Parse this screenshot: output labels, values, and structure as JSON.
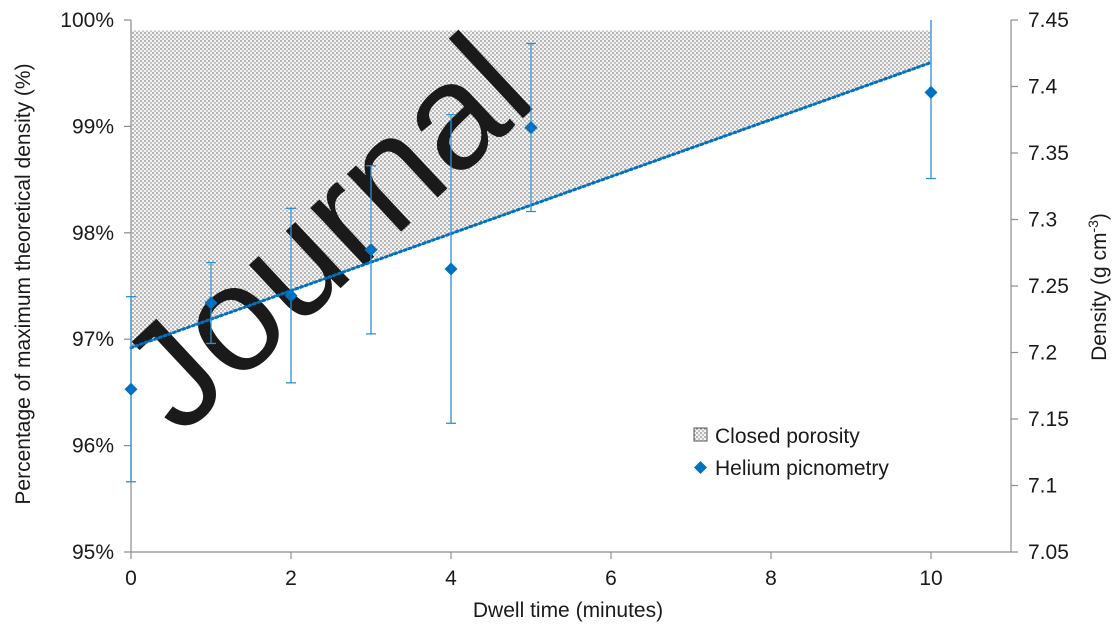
{
  "chart_data": {
    "type": "scatter",
    "x_axis": {
      "label": "Dwell time (minutes)",
      "range": [
        0,
        11
      ],
      "ticks": [
        0,
        2,
        4,
        6,
        8,
        10
      ],
      "tick_labels": [
        "0",
        "2",
        "4",
        "6",
        "8",
        "10"
      ]
    },
    "y_axis_left": {
      "label": "Percentage of maximum theoretical density (%)",
      "range": [
        95,
        100
      ],
      "ticks": [
        95,
        96,
        97,
        98,
        99,
        100
      ],
      "tick_labels": [
        "95%",
        "96%",
        "97%",
        "98%",
        "99%",
        "100%"
      ]
    },
    "y_axis_right": {
      "label_main": "Density (g cm",
      "label_sup": "-3",
      "label_end": ")",
      "range": [
        7.05,
        7.45
      ],
      "ticks": [
        7.05,
        7.1,
        7.15,
        7.2,
        7.25,
        7.3,
        7.35,
        7.4,
        7.45
      ],
      "tick_labels": [
        "7.05",
        "7.1",
        "7.15",
        "7.2",
        "7.25",
        "7.3",
        "7.35",
        "7.4",
        "7.45"
      ]
    },
    "series": [
      {
        "name": "Helium picnometry",
        "color": "#0070c0",
        "marker": "diamond",
        "points": [
          {
            "x": 0,
            "y": 96.53,
            "err": 0.87
          },
          {
            "x": 1,
            "y": 97.34,
            "err": 0.38
          },
          {
            "x": 2,
            "y": 97.41,
            "err": 0.82
          },
          {
            "x": 3,
            "y": 97.84,
            "err": 0.79
          },
          {
            "x": 4,
            "y": 97.66,
            "err": 1.45
          },
          {
            "x": 5,
            "y": 98.99,
            "err": 0.79
          },
          {
            "x": 10,
            "y": 99.32,
            "err": 0.81
          }
        ]
      },
      {
        "name": "Closed porosity",
        "type": "area",
        "fill": "dotted-gray",
        "x_range": [
          0,
          10
        ],
        "upper": 99.9
      }
    ],
    "trendline": {
      "type": "linear",
      "color": "#0070c0",
      "style": "dotted",
      "points": [
        [
          0,
          96.92
        ],
        [
          10,
          99.6
        ]
      ]
    },
    "legend": {
      "position": "bottom-right",
      "entries": [
        {
          "label": "Closed porosity",
          "symbol": "dotted-square"
        },
        {
          "label": "Helium picnometry",
          "symbol": "diamond"
        }
      ]
    },
    "grid": false
  },
  "watermark": {
    "text": "Journal",
    "color": "#d4d4d4"
  }
}
